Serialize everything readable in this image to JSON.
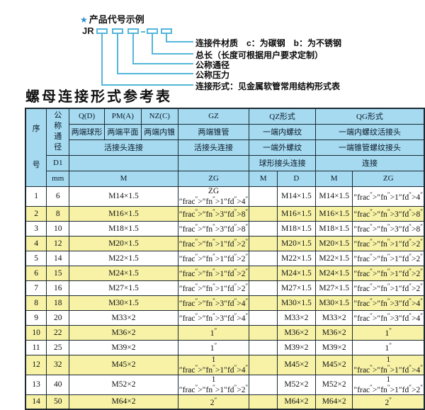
{
  "colors": {
    "accent_blue": "#54b6da",
    "star_blue": "#2f8fcc",
    "table_header_bg": "#a6daf1",
    "row_alt_yellow": "#f7f2a6",
    "grid_border": "#1c2a33"
  },
  "diagram": {
    "star": "★",
    "title": "产品代号示例",
    "prefix": "JR",
    "labels": [
      "连接件材质　c：为碳钢　b：为不锈钢",
      "总长（长度可根据用户要求定制）",
      "公称通径",
      "公称压力",
      "连接形式：见金属软管常用结构形式表"
    ]
  },
  "table_title": "螺母连接形式参考表",
  "table": {
    "header": {
      "seq": "序号",
      "nominal_diameter": "公称通径",
      "d1": "D1",
      "mm": "mm",
      "qd": "Q(D)",
      "pma": "PM(A)",
      "nzc": "NZ(C)",
      "gz": "GZ",
      "qz_form": "QZ形式",
      "qg_form": "QG形式",
      "qd_type": "两端球形",
      "pma_type": "两端平面",
      "nzc_type": "两端内锥",
      "gz_type": "两端锥管",
      "qz_type1": "一端内螺纹",
      "qg_type1": "一端内螺纹活接头",
      "m_conn": "活接头连接",
      "gz_conn": "活接头连接",
      "qz_type2": "一端外螺纹",
      "qg_type2": "一端锥管螺纹接头",
      "qz_conn": "球形接头连接",
      "qg_conn": "连接",
      "m": "M",
      "zg": "ZG",
      "qz_m": "M",
      "qz_d": "D",
      "qg_m": "M",
      "qg_zg": "ZG"
    },
    "rows": [
      [
        "1",
        "6",
        "M14×1.5",
        "ZG 1/4\"",
        "",
        "M14×1.5",
        "M14×1.5",
        "1/4\""
      ],
      [
        "2",
        "8",
        "M16×1.5",
        "3/8\"",
        "",
        "M16×1.5",
        "M16×1.5",
        "3/8\""
      ],
      [
        "3",
        "10",
        "M18×1.5",
        "3/8\"",
        "",
        "M18×1.5",
        "M18×1.5",
        "3/8\""
      ],
      [
        "4",
        "12",
        "M20×1.5",
        "1/2\"",
        "",
        "M20×1.5",
        "M20×1.5",
        "1/2\""
      ],
      [
        "5",
        "14",
        "M22×1.5",
        "1/2\"",
        "",
        "M22×1.5",
        "M22×1.5",
        "1/2\""
      ],
      [
        "6",
        "15",
        "M24×1.5",
        "1/2\"",
        "",
        "M24×1.5",
        "M24×1.5",
        "1/2\""
      ],
      [
        "7",
        "16",
        "M27×1.5",
        "1/2\"",
        "",
        "M27×1.5",
        "M27×1.5",
        "1/2\""
      ],
      [
        "8",
        "18",
        "M30×1.5",
        "3/4\"",
        "",
        "M30×1.5",
        "M30×1.5",
        "3/4\""
      ],
      [
        "9",
        "20",
        "M33×2",
        "3/4\"",
        "",
        "M33×2",
        "M33×2",
        "3/4\""
      ],
      [
        "10",
        "22",
        "M36×2",
        "1\"",
        "",
        "M36×2",
        "M36×2",
        "1\""
      ],
      [
        "11",
        "25",
        "M39×2",
        "1\"",
        "",
        "M39×2",
        "M39×2",
        "1\""
      ],
      [
        "12",
        "32",
        "M45×2",
        "1 1/4\"",
        "",
        "M45×2",
        "M45×2",
        "1 1/4\""
      ],
      [
        "13",
        "40",
        "M52×2",
        "1 1/2\"",
        "",
        "M52×2",
        "M52×2",
        "1 1/2\""
      ],
      [
        "14",
        "50",
        "M64×2",
        "2\"",
        "",
        "M64×2",
        "M64×2",
        "2\""
      ]
    ]
  }
}
